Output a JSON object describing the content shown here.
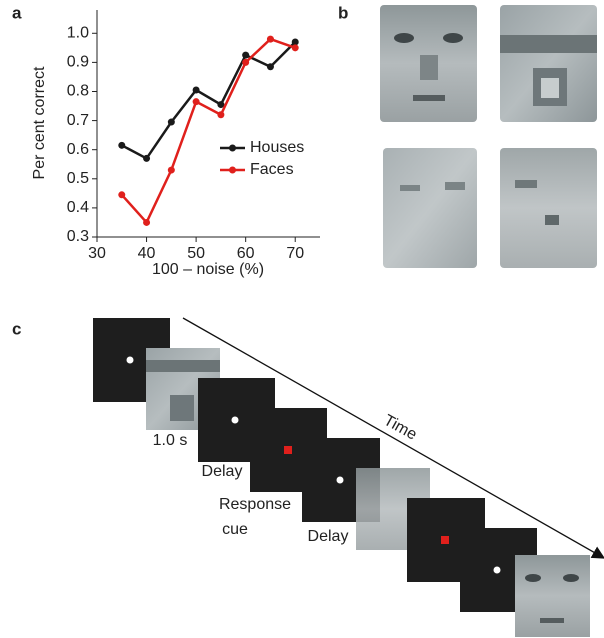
{
  "panel_labels": [
    "a",
    "b",
    "c"
  ],
  "chart_data": {
    "type": "line",
    "x_label": "100 – noise (%)",
    "y_label": "Per cent correct",
    "x": [
      35,
      40,
      45,
      50,
      55,
      60,
      65,
      70
    ],
    "series": [
      {
        "name": "Houses",
        "color": "#1a1a1a",
        "values": [
          0.615,
          0.57,
          0.695,
          0.805,
          0.755,
          0.925,
          0.885,
          0.97
        ]
      },
      {
        "name": "Faces",
        "color": "#e0201c",
        "values": [
          0.445,
          0.35,
          0.53,
          0.765,
          0.72,
          0.9,
          0.98,
          0.95
        ]
      }
    ],
    "xlim": [
      30,
      75
    ],
    "xticks": [
      30,
      40,
      50,
      60,
      70
    ],
    "ylim": [
      0.3,
      1.08
    ],
    "yticks": [
      0.3,
      0.4,
      0.5,
      0.6,
      0.7,
      0.8,
      0.9,
      {
        "value": 1,
        "label": "1.0"
      }
    ],
    "legend": "right"
  },
  "timeline": {
    "axis_label": "Time",
    "labels": [
      "1.0 s",
      "Delay",
      [
        "Response",
        "cue"
      ],
      "Delay"
    ]
  }
}
